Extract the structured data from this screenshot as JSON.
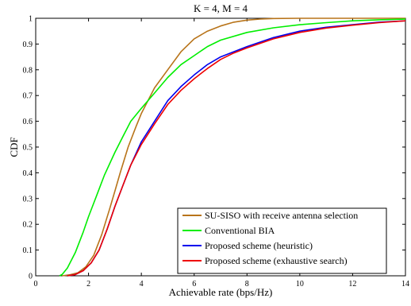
{
  "chart_data": {
    "type": "line",
    "title": "K = 4, M = 4",
    "xlabel": "Achievable rate (bps/Hz)",
    "ylabel": "CDF",
    "xlim": [
      0,
      14
    ],
    "ylim": [
      0,
      1
    ],
    "xticks": [
      0,
      2,
      4,
      6,
      8,
      10,
      12,
      14
    ],
    "yticks": [
      0,
      0.1,
      0.2,
      0.3,
      0.4,
      0.5,
      0.6,
      0.7,
      0.8,
      0.9,
      1
    ],
    "xtick_labels": [
      "0",
      "2",
      "4",
      "6",
      "8",
      "10",
      "12",
      "14"
    ],
    "ytick_labels": [
      "0",
      "0.1",
      "0.2",
      "0.3",
      "0.4",
      "0.5",
      "0.6",
      "0.7",
      "0.8",
      "0.9",
      "1"
    ],
    "grid": false,
    "legend_position": "bottom-right",
    "series": [
      {
        "name": "SU-SISO with receive antenna selection",
        "color": "#b8741a",
        "x": [
          1.0,
          1.3,
          1.6,
          1.9,
          2.2,
          2.5,
          2.8,
          3.0,
          3.2,
          3.5,
          3.8,
          4.0,
          4.5,
          5.0,
          5.5,
          6.0,
          6.5,
          7.0,
          7.5,
          8.0,
          8.5,
          9.0,
          10.0,
          11.0,
          12.0,
          13.0,
          14.0
        ],
        "y": [
          0.0,
          0.004,
          0.012,
          0.035,
          0.08,
          0.16,
          0.26,
          0.33,
          0.4,
          0.5,
          0.58,
          0.63,
          0.73,
          0.8,
          0.87,
          0.92,
          0.95,
          0.97,
          0.985,
          0.993,
          0.997,
          0.999,
          1.0,
          1.0,
          1.0,
          1.0,
          1.0
        ]
      },
      {
        "name": "Conventional BIA",
        "color": "#00ee00",
        "x": [
          0.9,
          1.0,
          1.2,
          1.5,
          1.8,
          2.0,
          2.3,
          2.6,
          3.0,
          3.3,
          3.6,
          4.0,
          4.5,
          5.0,
          5.5,
          6.0,
          6.5,
          7.0,
          8.0,
          9.0,
          10.0,
          11.0,
          12.0,
          13.0,
          14.0
        ],
        "y": [
          0.0,
          0.005,
          0.03,
          0.09,
          0.17,
          0.23,
          0.31,
          0.39,
          0.48,
          0.54,
          0.6,
          0.65,
          0.71,
          0.77,
          0.82,
          0.855,
          0.89,
          0.915,
          0.945,
          0.963,
          0.975,
          0.983,
          0.99,
          0.994,
          0.997
        ]
      },
      {
        "name": "Proposed scheme (heuristic)",
        "color": "#0000ee",
        "x": [
          1.2,
          1.5,
          1.8,
          2.1,
          2.4,
          2.7,
          3.0,
          3.3,
          3.6,
          4.0,
          4.5,
          5.0,
          5.5,
          6.0,
          6.5,
          7.0,
          7.5,
          8.0,
          9.0,
          10.0,
          11.0,
          12.0,
          13.0,
          14.0
        ],
        "y": [
          0.0,
          0.005,
          0.02,
          0.05,
          0.1,
          0.18,
          0.27,
          0.35,
          0.43,
          0.52,
          0.6,
          0.68,
          0.735,
          0.78,
          0.82,
          0.85,
          0.87,
          0.89,
          0.925,
          0.95,
          0.965,
          0.975,
          0.985,
          0.99
        ]
      },
      {
        "name": "Proposed scheme (exhaustive search)",
        "color": "#ee0000",
        "x": [
          1.2,
          1.5,
          1.8,
          2.1,
          2.4,
          2.7,
          3.0,
          3.3,
          3.6,
          4.0,
          4.5,
          5.0,
          5.5,
          6.0,
          6.5,
          7.0,
          7.5,
          8.0,
          9.0,
          10.0,
          11.0,
          12.0,
          13.0,
          14.0
        ],
        "y": [
          0.0,
          0.005,
          0.02,
          0.05,
          0.1,
          0.18,
          0.27,
          0.35,
          0.43,
          0.51,
          0.59,
          0.665,
          0.72,
          0.765,
          0.805,
          0.84,
          0.865,
          0.885,
          0.92,
          0.945,
          0.962,
          0.973,
          0.983,
          0.99
        ]
      }
    ]
  }
}
